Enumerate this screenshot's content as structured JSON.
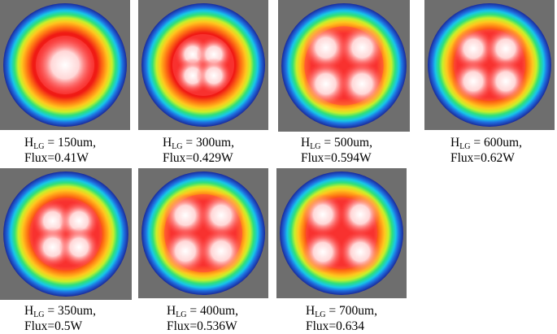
{
  "panels": [
    {
      "height_um": "150um",
      "flux": "Flux=0.41W",
      "pattern": "single-blob"
    },
    {
      "height_um": "300um",
      "flux": "Flux=0.429W",
      "pattern": "four-merged"
    },
    {
      "height_um": "500um",
      "flux": "Flux=0.594W",
      "pattern": "four-with-lobes"
    },
    {
      "height_um": "600um",
      "flux": "Flux=0.62W",
      "pattern": "four-split"
    },
    {
      "height_um": "350um",
      "flux": "Flux=0.5W",
      "pattern": "four-merged-large"
    },
    {
      "height_um": "400um",
      "flux": "Flux=0.536W",
      "pattern": "four-with-lobes"
    },
    {
      "height_um": "700um",
      "flux": "Flux=0.634",
      "pattern": "four-separated"
    }
  ],
  "label": {
    "prefix": "H",
    "subscript": "LG",
    "equals": " = "
  },
  "colors": {
    "panel_background": "#6e6e6e",
    "ring_outer": "#1a2a9a",
    "gradient": [
      "#1a2a9a",
      "#1f6fe0",
      "#17c8e8",
      "#2ee07a",
      "#c8f02a",
      "#ffc81e",
      "#ff7a14",
      "#f01a14",
      "#ff4646",
      "#ffd7d7",
      "#ffffff"
    ]
  }
}
